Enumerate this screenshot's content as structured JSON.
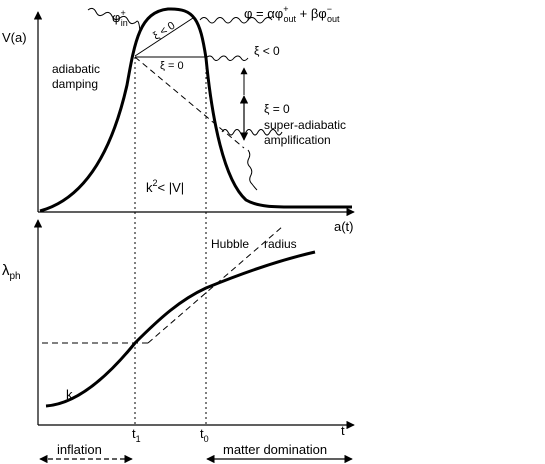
{
  "top_panel": {
    "y_axis_label": "V(a)",
    "x_axis_label": "a(t)",
    "equation": {
      "lhs": "φ = ",
      "alpha": "αφ",
      "alpha_sup": "+",
      "alpha_sub": "out",
      "plus": " + ",
      "beta": "βφ",
      "beta_sup": "−",
      "beta_sub": "out"
    },
    "incoming_wave": {
      "base": "φ",
      "sup": "+",
      "sub": "in"
    },
    "xi_inside_upper": "ξ < 0",
    "xi_inside_lower": "ξ = 0",
    "xi_right_upper": "ξ < 0",
    "xi_right_lower": "ξ = 0",
    "adiabatic_line1": "adiabatic",
    "adiabatic_line2": "damping",
    "super_line1": "super-adiabatic",
    "super_line2": "amplification",
    "condition": {
      "k": "k",
      "sup": "2",
      "rest": "< |V|"
    }
  },
  "bottom_panel": {
    "y_axis_label": {
      "base": "λ",
      "sub": "ph"
    },
    "x_axis_label": "t",
    "hubble_word1": "Hubble",
    "hubble_word2": "radius",
    "curve_label": "k",
    "t1": {
      "base": "t",
      "sub": "1"
    },
    "t0": {
      "base": "t",
      "sub": "0"
    }
  },
  "eras": {
    "inflation": "inflation",
    "matter": "matter domination"
  }
}
